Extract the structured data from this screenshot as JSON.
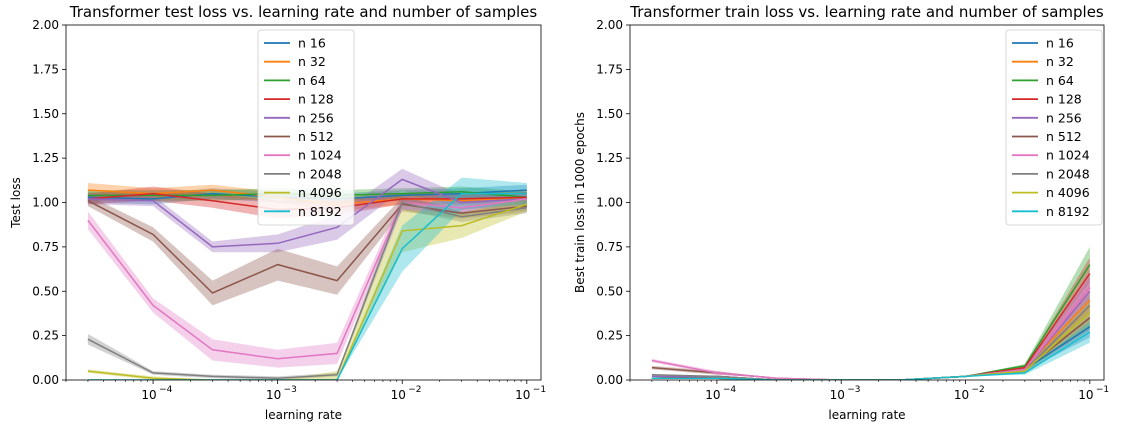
{
  "chart_data": [
    {
      "type": "line",
      "title": "Transformer test loss vs. learning rate and number of samples",
      "xlabel": "learning rate",
      "ylabel": "Test loss",
      "xscale": "log",
      "xlim": [
        2e-05,
        0.13
      ],
      "ylim": [
        0,
        2
      ],
      "x": [
        3e-05,
        0.0001,
        0.0003,
        0.001,
        0.003,
        0.01,
        0.03,
        0.1
      ],
      "x_ticks": [
        0.0001,
        0.001,
        0.01,
        0.1
      ],
      "x_tick_labels": [
        "10",
        "10",
        "10",
        "10"
      ],
      "x_tick_exponents": [
        "−4",
        "−3",
        "−2",
        "−1"
      ],
      "y_ticks": [
        0,
        0.25,
        0.5,
        0.75,
        1.0,
        1.25,
        1.5,
        1.75,
        2.0
      ],
      "y_tick_labels": [
        "0.00",
        "0.25",
        "0.50",
        "0.75",
        "1.00",
        "1.25",
        "1.50",
        "1.75",
        "2.00"
      ],
      "grid": false,
      "legend_position": "top-center",
      "series": [
        {
          "name": "n 16",
          "color": "#1f77b4",
          "values": [
            1.03,
            1.02,
            1.05,
            1.03,
            1.02,
            1.04,
            1.05,
            1.07
          ],
          "spread": [
            0.03,
            0.03,
            0.03,
            0.03,
            0.03,
            0.03,
            0.03,
            0.03
          ]
        },
        {
          "name": "n 32",
          "color": "#ff7f0e",
          "values": [
            1.07,
            1.05,
            1.07,
            1.03,
            0.99,
            1.02,
            1.01,
            1.03
          ],
          "spread": [
            0.04,
            0.03,
            0.03,
            0.03,
            0.04,
            0.03,
            0.03,
            0.04
          ]
        },
        {
          "name": "n 64",
          "color": "#2ca02c",
          "values": [
            1.04,
            1.04,
            1.04,
            1.05,
            1.04,
            1.05,
            1.06,
            1.03
          ],
          "spread": [
            0.03,
            0.03,
            0.03,
            0.03,
            0.03,
            0.03,
            0.03,
            0.03
          ]
        },
        {
          "name": "n 128",
          "color": "#d62728",
          "values": [
            1.02,
            1.05,
            1.01,
            0.96,
            0.97,
            1.02,
            1.02,
            1.03
          ],
          "spread": [
            0.03,
            0.04,
            0.04,
            0.05,
            0.04,
            0.03,
            0.03,
            0.03
          ]
        },
        {
          "name": "n 256",
          "color": "#9467bd",
          "values": [
            1.02,
            1.01,
            0.75,
            0.77,
            0.86,
            1.13,
            1.0,
            1.02
          ],
          "spread": [
            0.03,
            0.03,
            0.03,
            0.05,
            0.07,
            0.06,
            0.04,
            0.03
          ]
        },
        {
          "name": "n 512",
          "color": "#8c564b",
          "values": [
            1.01,
            0.82,
            0.49,
            0.65,
            0.56,
            0.99,
            0.94,
            0.98
          ],
          "spread": [
            0.03,
            0.04,
            0.07,
            0.09,
            0.08,
            0.04,
            0.03,
            0.03
          ]
        },
        {
          "name": "n 1024",
          "color": "#e377c2",
          "values": [
            0.9,
            0.42,
            0.17,
            0.12,
            0.15,
            1.0,
            0.97,
            1.02
          ],
          "spread": [
            0.05,
            0.04,
            0.06,
            0.05,
            0.06,
            0.04,
            0.03,
            0.03
          ]
        },
        {
          "name": "n 2048",
          "color": "#7f7f7f",
          "values": [
            0.23,
            0.04,
            0.02,
            0.01,
            0.03,
            1.0,
            0.92,
            0.97
          ],
          "spread": [
            0.03,
            0.01,
            0.01,
            0.01,
            0.01,
            0.04,
            0.03,
            0.03
          ]
        },
        {
          "name": "n 4096",
          "color": "#bcbd22",
          "values": [
            0.05,
            0.01,
            0.0,
            0.0,
            0.0,
            0.84,
            0.87,
            0.99
          ],
          "spread": [
            0.01,
            0.01,
            0.0,
            0.0,
            0.05,
            0.12,
            0.07,
            0.04
          ]
        },
        {
          "name": "n 8192",
          "color": "#17becf",
          "values": [
            0.0,
            0.0,
            0.0,
            0.0,
            0.0,
            0.74,
            1.05,
            1.05
          ],
          "spread": [
            0.0,
            0.0,
            0.0,
            0.0,
            0.0,
            0.13,
            0.09,
            0.06
          ]
        }
      ]
    },
    {
      "type": "line",
      "title": "Transformer train loss vs. learning rate and number of samples",
      "xlabel": "learning rate",
      "ylabel": "Best train loss in 1000 epochs",
      "xscale": "log",
      "xlim": [
        2e-05,
        0.13
      ],
      "ylim": [
        0,
        2
      ],
      "x": [
        3e-05,
        0.0001,
        0.0003,
        0.001,
        0.003,
        0.01,
        0.03,
        0.1
      ],
      "x_ticks": [
        0.0001,
        0.001,
        0.01,
        0.1
      ],
      "x_tick_labels": [
        "10",
        "10",
        "10",
        "10"
      ],
      "x_tick_exponents": [
        "−4",
        "−3",
        "−2",
        "−1"
      ],
      "y_ticks": [
        0,
        0.25,
        0.5,
        0.75,
        1.0,
        1.25,
        1.5,
        1.75,
        2.0
      ],
      "y_tick_labels": [
        "0.00",
        "0.25",
        "0.50",
        "0.75",
        "1.00",
        "1.25",
        "1.50",
        "1.75",
        "2.00"
      ],
      "grid": false,
      "legend_position": "top-right",
      "series": [
        {
          "name": "n 16",
          "color": "#1f77b4",
          "values": [
            0.01,
            0.01,
            0.0,
            0.0,
            0.0,
            0.02,
            0.06,
            0.3
          ],
          "spread": [
            0.0,
            0.0,
            0.0,
            0.0,
            0.0,
            0.0,
            0.01,
            0.06
          ]
        },
        {
          "name": "n 32",
          "color": "#ff7f0e",
          "values": [
            0.01,
            0.01,
            0.0,
            0.0,
            0.0,
            0.02,
            0.07,
            0.45
          ],
          "spread": [
            0.0,
            0.0,
            0.0,
            0.0,
            0.0,
            0.0,
            0.01,
            0.08
          ]
        },
        {
          "name": "n 64",
          "color": "#2ca02c",
          "values": [
            0.01,
            0.02,
            0.0,
            0.0,
            0.0,
            0.02,
            0.08,
            0.65
          ],
          "spread": [
            0.0,
            0.0,
            0.0,
            0.0,
            0.0,
            0.0,
            0.01,
            0.1
          ]
        },
        {
          "name": "n 128",
          "color": "#d62728",
          "values": [
            0.01,
            0.02,
            0.0,
            0.0,
            0.0,
            0.02,
            0.07,
            0.6
          ],
          "spread": [
            0.0,
            0.0,
            0.0,
            0.0,
            0.0,
            0.0,
            0.01,
            0.09
          ]
        },
        {
          "name": "n 256",
          "color": "#9467bd",
          "values": [
            0.02,
            0.02,
            0.0,
            0.0,
            0.0,
            0.02,
            0.06,
            0.5
          ],
          "spread": [
            0.0,
            0.0,
            0.0,
            0.0,
            0.0,
            0.0,
            0.01,
            0.08
          ]
        },
        {
          "name": "n 512",
          "color": "#8c564b",
          "values": [
            0.07,
            0.04,
            0.01,
            0.0,
            0.0,
            0.02,
            0.06,
            0.35
          ],
          "spread": [
            0.01,
            0.01,
            0.0,
            0.0,
            0.0,
            0.0,
            0.01,
            0.07
          ]
        },
        {
          "name": "n 1024",
          "color": "#e377c2",
          "values": [
            0.11,
            0.04,
            0.01,
            0.0,
            0.0,
            0.02,
            0.06,
            0.52
          ],
          "spread": [
            0.01,
            0.01,
            0.0,
            0.0,
            0.0,
            0.0,
            0.01,
            0.09
          ]
        },
        {
          "name": "n 2048",
          "color": "#7f7f7f",
          "values": [
            0.03,
            0.02,
            0.0,
            0.0,
            0.0,
            0.02,
            0.05,
            0.42
          ],
          "spread": [
            0.0,
            0.0,
            0.0,
            0.0,
            0.0,
            0.0,
            0.01,
            0.07
          ]
        },
        {
          "name": "n 4096",
          "color": "#bcbd22",
          "values": [
            0.01,
            0.01,
            0.0,
            0.0,
            0.0,
            0.02,
            0.05,
            0.38
          ],
          "spread": [
            0.0,
            0.0,
            0.0,
            0.0,
            0.0,
            0.0,
            0.01,
            0.07
          ]
        },
        {
          "name": "n 8192",
          "color": "#17becf",
          "values": [
            0.01,
            0.01,
            0.0,
            0.0,
            0.0,
            0.02,
            0.04,
            0.27
          ],
          "spread": [
            0.0,
            0.0,
            0.0,
            0.0,
            0.0,
            0.0,
            0.01,
            0.06
          ]
        }
      ]
    }
  ]
}
